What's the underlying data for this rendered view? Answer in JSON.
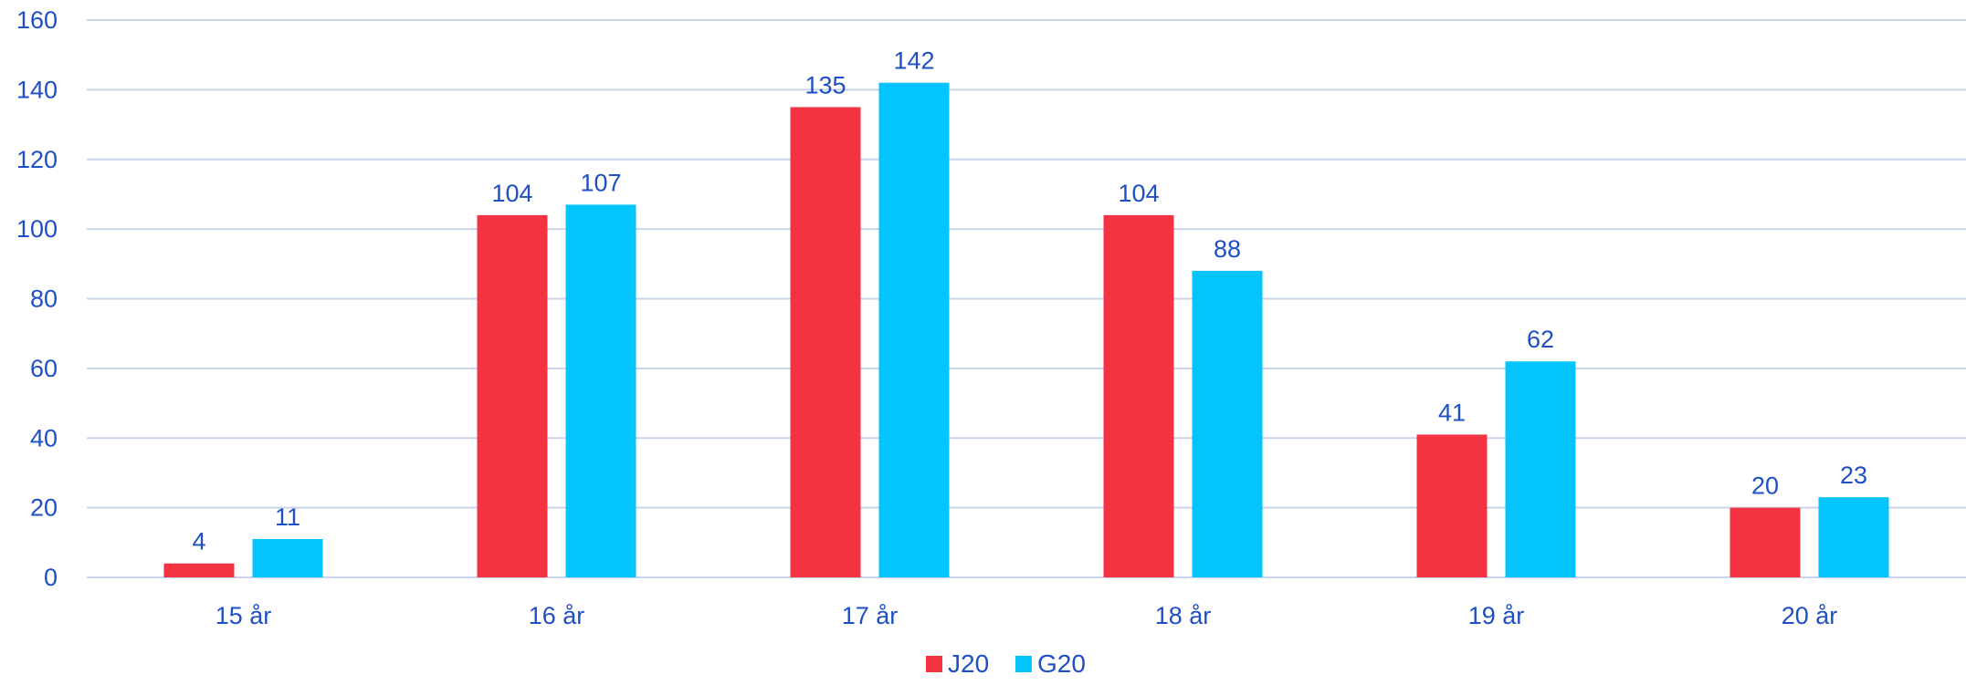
{
  "chart_data": {
    "type": "bar",
    "categories": [
      "15 år",
      "16 år",
      "17 år",
      "18 år",
      "19 år",
      "20 år"
    ],
    "series": [
      {
        "name": "J20",
        "color": "#f43342",
        "values": [
          4,
          104,
          135,
          104,
          41,
          20
        ]
      },
      {
        "name": "G20",
        "color": "#03c4fc",
        "values": [
          11,
          107,
          142,
          88,
          62,
          23
        ]
      }
    ],
    "ylim": [
      0,
      160
    ],
    "yticks": [
      0,
      20,
      40,
      60,
      80,
      100,
      120,
      140,
      160
    ],
    "grid": true,
    "legend": "bottom-center",
    "text_color": "#1f4fc4"
  }
}
